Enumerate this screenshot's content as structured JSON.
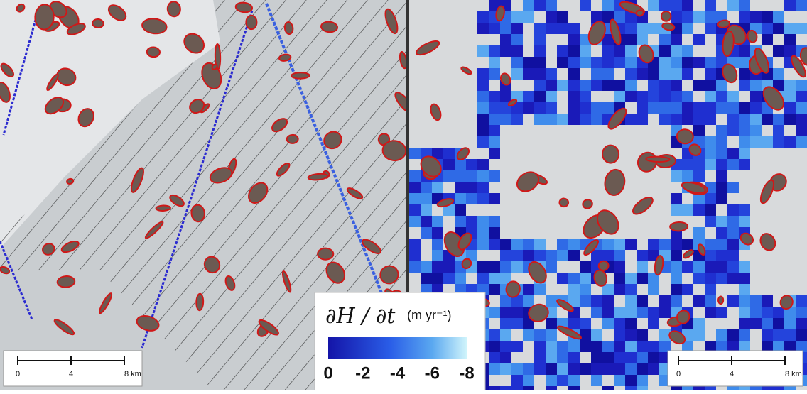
{
  "colorbar": {
    "symbol": "∂H / ∂t",
    "unit": "(m yr⁻¹)",
    "ticks": [
      0,
      -2,
      -4,
      -6,
      -8
    ]
  },
  "scale_bars": [
    {
      "ticks": [
        0,
        4,
        {
          "value": 8,
          "label": "8 km"
        }
      ]
    },
    {
      "ticks": [
        0,
        4,
        {
          "value": 8,
          "label": "8 km"
        }
      ]
    }
  ]
}
